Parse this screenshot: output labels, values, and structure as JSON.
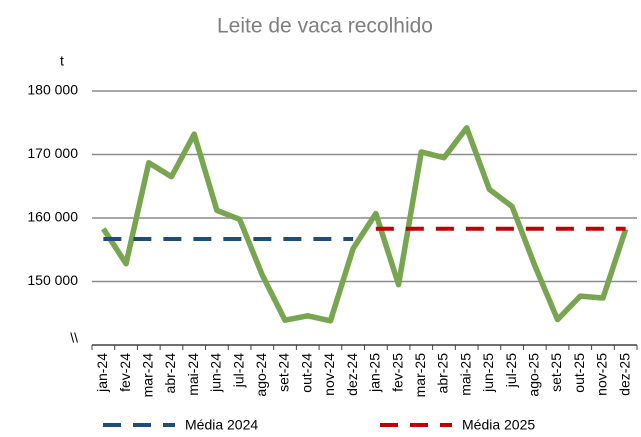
{
  "chart_data": {
    "type": "line",
    "title": "Leite de vaca recolhido",
    "y_label": "t",
    "categories": [
      "jan-24",
      "fev-24",
      "mar-24",
      "abr-24",
      "mai-24",
      "jun-24",
      "jul-24",
      "ago-24",
      "set-24",
      "out-24",
      "nov-24",
      "dez-24",
      "jan-25",
      "fev-25",
      "mar-25",
      "abr-25",
      "mai-25",
      "jun-25",
      "jul-25",
      "ago-25",
      "set-25",
      "out-25",
      "nov-25",
      "dez-25"
    ],
    "series": [
      {
        "color": "#78a54f",
        "style": "solid",
        "values": [
          158300,
          152800,
          168700,
          166500,
          173200,
          161200,
          159800,
          151000,
          143900,
          144600,
          143800,
          155200,
          160700,
          149500,
          170400,
          169500,
          174200,
          164500,
          161800,
          152500,
          144000,
          147700,
          147400,
          158200
        ]
      },
      {
        "name": "Média 2024",
        "color": "#1f4e79",
        "style": "dashed",
        "values": [
          156700,
          156700,
          156700,
          156700,
          156700,
          156700,
          156700,
          156700,
          156700,
          156700,
          156700,
          156700,
          null,
          null,
          null,
          null,
          null,
          null,
          null,
          null,
          null,
          null,
          null,
          null
        ]
      },
      {
        "name": "Média 2025",
        "color": "#c00000",
        "style": "dashed",
        "values": [
          null,
          null,
          null,
          null,
          null,
          null,
          null,
          null,
          null,
          null,
          null,
          null,
          158300,
          158300,
          158300,
          158300,
          158300,
          158300,
          158300,
          158300,
          158300,
          158300,
          158300,
          158300
        ]
      }
    ],
    "ylim": [
      140000,
      180000
    ],
    "yticks": [
      {
        "value": 140000,
        "label": "\\\\"
      },
      {
        "value": 150000,
        "label": "150 000"
      },
      {
        "value": 160000,
        "label": "160 000"
      },
      {
        "value": 170000,
        "label": "170 000"
      },
      {
        "value": 180000,
        "label": "180 000"
      }
    ],
    "grid": true,
    "legend": "bottom"
  }
}
